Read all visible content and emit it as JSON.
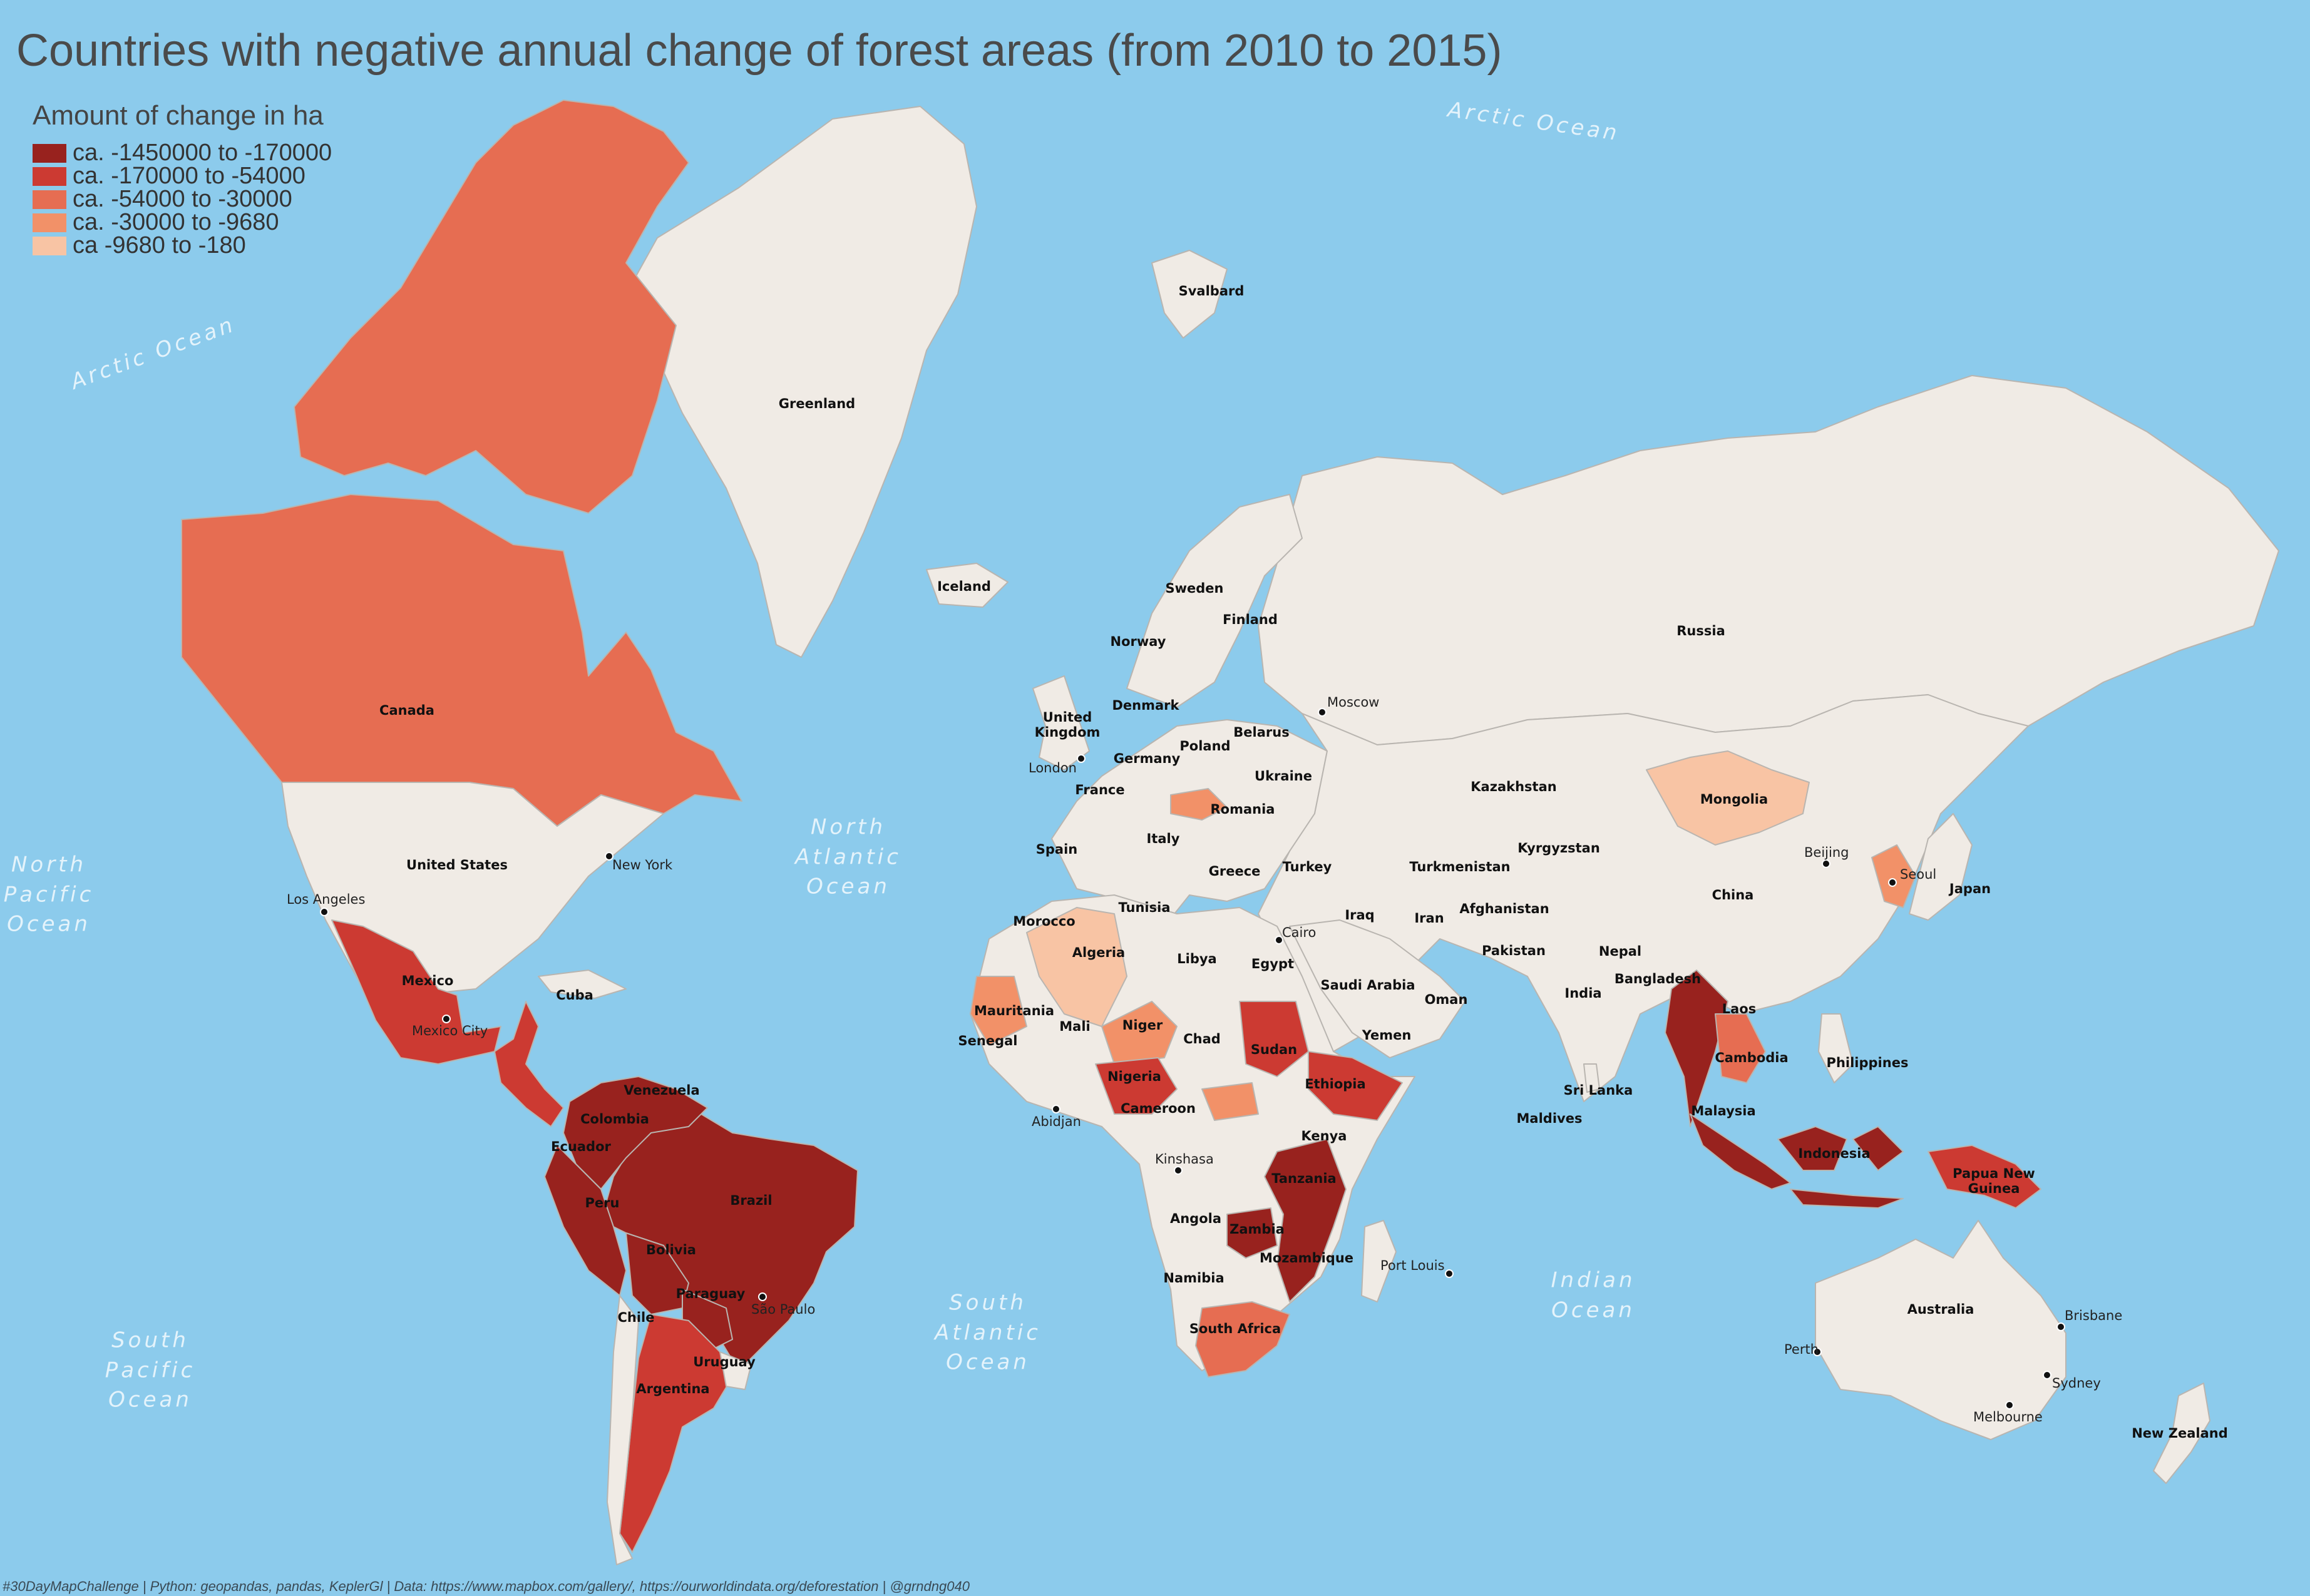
{
  "title": "Countries with negative annual change of forest areas (from 2010 to 2015)",
  "legend": {
    "title": "Amount of change in ha",
    "items": [
      {
        "label": "ca. -1450000 to -170000",
        "color": "#98221e"
      },
      {
        "label": "ca. -170000 to -54000",
        "color": "#cc3a32"
      },
      {
        "label": "ca. -54000 to -30000",
        "color": "#e66d52"
      },
      {
        "label": "ca. -30000 to -9680",
        "color": "#f29168"
      },
      {
        "label": "ca -9680 to -180",
        "color": "#f8c4a4"
      }
    ]
  },
  "colors": {
    "ocean": "#8ccbec",
    "land": "#f0ebe5",
    "border": "#b9b5b0"
  },
  "footer": "#30DayMapChallenge | Python: geopandas, pandas, KeplerGl | Data: https://www.mapbox.com/gallery/, https://ourworldindata.org/deforestation | @grndng040",
  "oceans": {
    "arctic_1": "Arctic Ocean",
    "arctic_2": "Arctic Ocean",
    "north_pacific": "North\nPacific\nOcean",
    "north_atlantic": "North\nAtlantic\nOcean",
    "south_atlantic": "South\nAtlantic\nOcean",
    "south_pacific": "South\nPacific\nOcean",
    "indian": "Indian\nOcean"
  },
  "countries": {
    "greenland": "Greenland",
    "svalbard": "Svalbard",
    "iceland": "Iceland",
    "canada": "Canada",
    "united_states": "United States",
    "mexico": "Mexico",
    "cuba": "Cuba",
    "venezuela": "Venezuela",
    "colombia": "Colombia",
    "ecuador": "Ecuador",
    "peru": "Peru",
    "brazil": "Brazil",
    "bolivia": "Bolivia",
    "paraguay": "Paraguay",
    "chile": "Chile",
    "uruguay": "Uruguay",
    "argentina": "Argentina",
    "sweden": "Sweden",
    "norway": "Norway",
    "finland": "Finland",
    "united_kingdom": "United\nKingdom",
    "denmark": "Denmark",
    "belarus": "Belarus",
    "poland": "Poland",
    "germany": "Germany",
    "ukraine": "Ukraine",
    "france": "France",
    "romania": "Romania",
    "spain": "Spain",
    "italy": "Italy",
    "greece": "Greece",
    "turkey": "Turkey",
    "russia": "Russia",
    "kazakhstan": "Kazakhstan",
    "mongolia": "Mongolia",
    "kyrgyzstan": "Kyrgyzstan",
    "turkmenistan": "Turkmenistan",
    "afghanistan": "Afghanistan",
    "iran": "Iran",
    "iraq": "Iraq",
    "pakistan": "Pakistan",
    "nepal": "Nepal",
    "china": "China",
    "japan": "Japan",
    "bangladesh": "Bangladesh",
    "india": "India",
    "laos": "Laos",
    "cambodia": "Cambodia",
    "philippines": "Philippines",
    "sri_lanka": "Sri Lanka",
    "maldives": "Maldives",
    "malaysia": "Malaysia",
    "indonesia": "Indonesia",
    "papua_new_guinea": "Papua New\nGuinea",
    "australia": "Australia",
    "new_zealand": "New Zealand",
    "tunisia": "Tunisia",
    "morocco": "Morocco",
    "algeria": "Algeria",
    "libya": "Libya",
    "egypt": "Egypt",
    "saudi_arabia": "Saudi Arabia",
    "oman": "Oman",
    "yemen": "Yemen",
    "mauritania": "Mauritania",
    "mali": "Mali",
    "niger": "Niger",
    "chad": "Chad",
    "sudan": "Sudan",
    "senegal": "Senegal",
    "nigeria": "Nigeria",
    "ethiopia": "Ethiopia",
    "cameroon": "Cameroon",
    "kenya": "Kenya",
    "tanzania": "Tanzania",
    "angola": "Angola",
    "zambia": "Zambia",
    "mozambique": "Mozambique",
    "namibia": "Namibia",
    "south_africa": "South Africa"
  },
  "cities": {
    "new_york": "New York",
    "los_angeles": "Los Angeles",
    "mexico_city": "Mexico City",
    "sao_paulo": "São Paulo",
    "london": "London",
    "moscow": "Moscow",
    "cairo": "Cairo",
    "abidjan": "Abidjan",
    "kinshasa": "Kinshasa",
    "beijing": "Beijing",
    "seoul": "Seoul",
    "port_louis": "Port Louis",
    "perth": "Perth",
    "brisbane": "Brisbane",
    "sydney": "Sydney",
    "melbourne": "Melbourne"
  }
}
